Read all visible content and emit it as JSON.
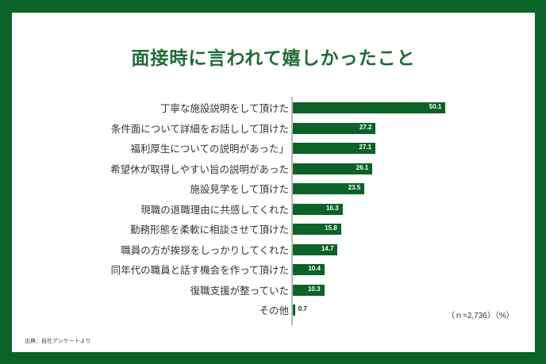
{
  "header": {
    "title": "面接時に言われて嬉しかったこと"
  },
  "note": "（ｎ=2,736）（%）",
  "source": "出典：自社アンケートより",
  "colors": {
    "frame": "#0b6327",
    "bar": "#0b6327",
    "title": "#1f6b35"
  },
  "chart_data": {
    "type": "bar",
    "orientation": "horizontal",
    "title": "面接時に言われて嬉しかったこと",
    "xlabel": "%",
    "ylabel": "",
    "categories": [
      "丁寧な施設説明をして頂けた",
      "条件面について詳細をお話しして頂けた",
      "福利厚生についての説明があった」",
      "希望休が取得しやすい旨の説明があった",
      "施設見学をして頂けた",
      "現職の退職理由に共感してくれた",
      "勤務形態を柔軟に相談させて頂けた",
      "職員の方が挨拶をしっかりしてくれた",
      "同年代の職員と話す機会を作って頂けた",
      "復職支援が整っていた",
      "その他"
    ],
    "values": [
      50.1,
      27.2,
      27.1,
      26.1,
      23.5,
      16.3,
      15.8,
      14.7,
      10.4,
      10.3,
      0.7
    ],
    "value_labels": [
      "50.1",
      "27.2",
      "27.1",
      "26.1",
      "23.5",
      "16.3",
      "15.8",
      "14.7",
      "10.4",
      "10.3",
      "0.7"
    ],
    "sample_size": "n=2,736",
    "unit": "%",
    "grid": false,
    "legend": null
  }
}
